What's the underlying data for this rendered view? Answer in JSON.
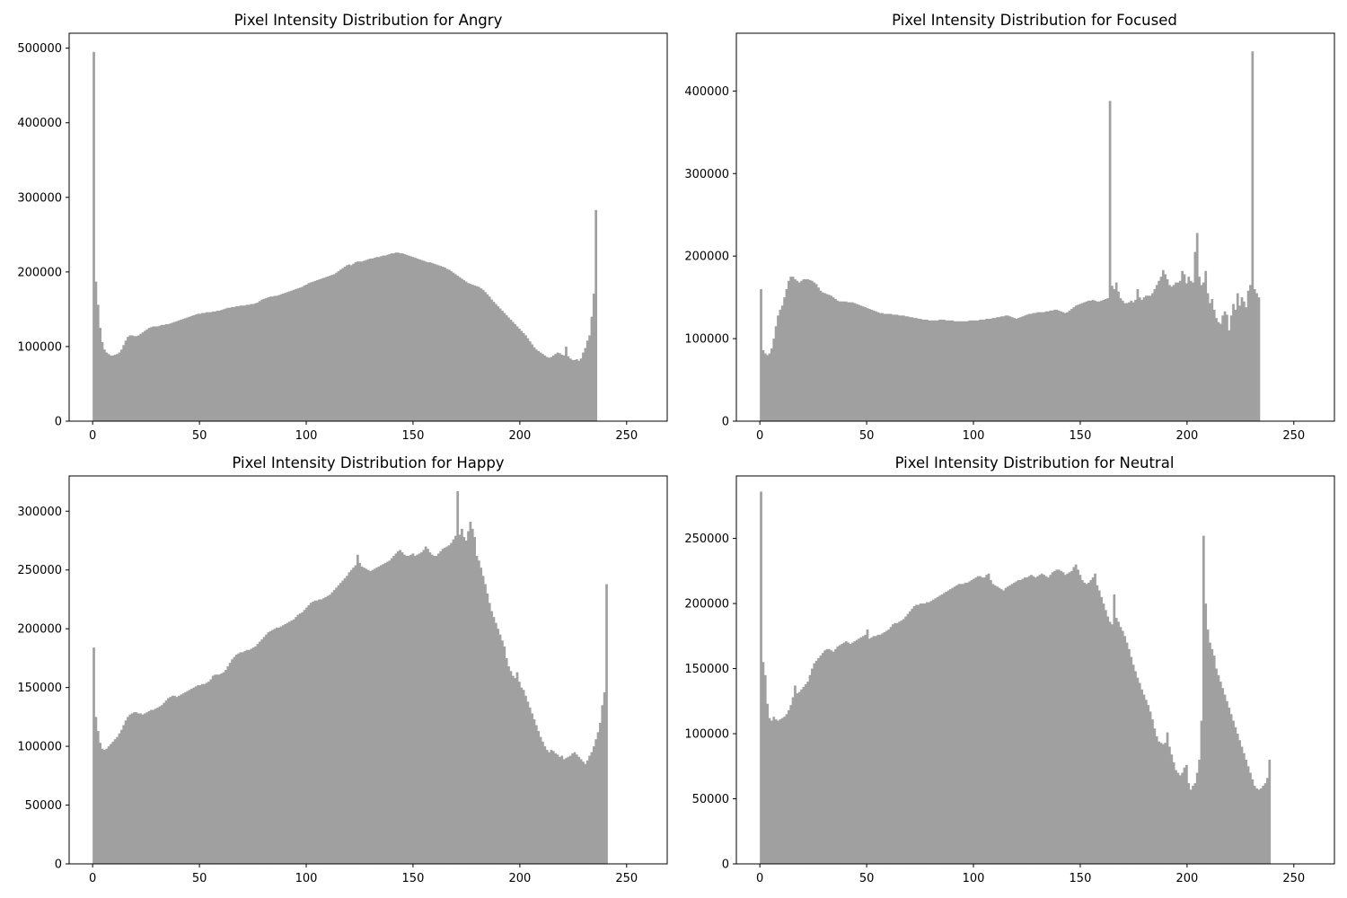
{
  "figure": {
    "background": "#ffffff",
    "bar_color": "#a0a0a0",
    "grid": false
  },
  "chart_data": [
    {
      "type": "bar",
      "title": "Pixel Intensity Distribution for Angry",
      "xlabel": "",
      "ylabel": "",
      "xlim": [
        -11,
        269
      ],
      "ylim": [
        0,
        520000
      ],
      "xticks": [
        0,
        50,
        100,
        150,
        200,
        250
      ],
      "xtick_labels": [
        "0",
        "50",
        "100",
        "150",
        "200",
        "250"
      ],
      "yticks": [
        0,
        100000,
        200000,
        300000,
        400000,
        500000
      ],
      "ytick_labels": [
        "0",
        "100000",
        "200000",
        "300000",
        "400000",
        "500000"
      ],
      "bins": {
        "start": 0,
        "end": 255,
        "count": 256
      },
      "values": [
        495000,
        187000,
        156000,
        125000,
        106000,
        96000,
        92000,
        90000,
        88000,
        88000,
        89000,
        90000,
        92000,
        96000,
        102000,
        108000,
        113000,
        115000,
        115000,
        114000,
        114000,
        115000,
        117000,
        119000,
        121000,
        123000,
        125000,
        126000,
        127000,
        127000,
        127000,
        128000,
        129000,
        129000,
        130000,
        130000,
        131000,
        132000,
        133000,
        134000,
        135000,
        136000,
        137000,
        138000,
        139000,
        140000,
        141000,
        142000,
        143000,
        144000,
        144000,
        145000,
        145000,
        146000,
        146000,
        146000,
        147000,
        147000,
        148000,
        148000,
        149000,
        150000,
        151000,
        152000,
        152000,
        153000,
        153000,
        154000,
        154000,
        155000,
        155000,
        155000,
        156000,
        156000,
        157000,
        157000,
        158000,
        159000,
        161000,
        163000,
        164000,
        165000,
        166000,
        167000,
        167000,
        168000,
        168000,
        169000,
        170000,
        171000,
        172000,
        173000,
        174000,
        175000,
        176000,
        177000,
        178000,
        179000,
        180000,
        182000,
        183000,
        185000,
        186000,
        187000,
        188000,
        189000,
        190000,
        191000,
        192000,
        193000,
        194000,
        195000,
        196000,
        197000,
        199000,
        201000,
        203000,
        205000,
        207000,
        209000,
        210000,
        209000,
        211000,
        213000,
        214000,
        214000,
        214000,
        215000,
        216000,
        217000,
        218000,
        218000,
        219000,
        220000,
        220000,
        221000,
        222000,
        222000,
        223000,
        224000,
        225000,
        225000,
        226000,
        226000,
        225000,
        225000,
        224000,
        223000,
        222000,
        221000,
        220000,
        219000,
        218000,
        217000,
        216000,
        215000,
        214000,
        213000,
        213000,
        212000,
        211000,
        210000,
        209000,
        208000,
        207000,
        206000,
        204000,
        203000,
        201000,
        199000,
        197000,
        195000,
        193000,
        191000,
        189000,
        187000,
        185000,
        184000,
        183000,
        182000,
        181000,
        180000,
        178000,
        176000,
        173000,
        170000,
        167000,
        163000,
        160000,
        157000,
        154000,
        151000,
        148000,
        145000,
        142000,
        139000,
        136000,
        133000,
        130000,
        127000,
        124000,
        121000,
        118000,
        115000,
        111000,
        107000,
        103000,
        99000,
        96000,
        94000,
        92000,
        90000,
        88000,
        86000,
        85000,
        86000,
        88000,
        90000,
        92000,
        91000,
        89000,
        88000,
        100000,
        87000,
        84000,
        82000,
        82000,
        83000,
        81000,
        84000,
        92000,
        98000,
        108000,
        115000,
        140000,
        171000,
        283000
      ],
      "notes_values": "values list includes 256 bins; peaks at 0 and 255"
    },
    {
      "type": "bar",
      "title": "Pixel Intensity Distribution for Focused",
      "xlabel": "",
      "ylabel": "",
      "xlim": [
        -11,
        269
      ],
      "ylim": [
        0,
        470000
      ],
      "xticks": [
        0,
        50,
        100,
        150,
        200,
        250
      ],
      "xtick_labels": [
        "0",
        "50",
        "100",
        "150",
        "200",
        "250"
      ],
      "yticks": [
        0,
        100000,
        200000,
        300000,
        400000
      ],
      "ytick_labels": [
        "0",
        "100000",
        "200000",
        "300000",
        "400000"
      ],
      "bins": {
        "start": 0,
        "end": 255,
        "count": 256
      },
      "values": [
        160000,
        86000,
        82000,
        80000,
        82000,
        88000,
        100000,
        115000,
        128000,
        135000,
        140000,
        150000,
        160000,
        170000,
        175000,
        175000,
        172000,
        170000,
        168000,
        170000,
        172000,
        172000,
        172000,
        171000,
        170000,
        168000,
        166000,
        162000,
        158000,
        156000,
        155000,
        154000,
        153000,
        152000,
        150000,
        148000,
        146000,
        145000,
        145000,
        145000,
        145000,
        144000,
        144000,
        144000,
        143000,
        142000,
        141000,
        140000,
        139000,
        138000,
        137000,
        136000,
        135000,
        134000,
        133000,
        132000,
        131000,
        131000,
        130000,
        130000,
        130000,
        130000,
        129000,
        129000,
        129000,
        128000,
        128000,
        128000,
        127000,
        127000,
        126000,
        126000,
        125000,
        125000,
        124000,
        124000,
        123000,
        123000,
        123000,
        122000,
        122000,
        122000,
        122000,
        122000,
        123000,
        123000,
        123000,
        122000,
        122000,
        122000,
        122000,
        121000,
        121000,
        121000,
        121000,
        121000,
        121000,
        121000,
        122000,
        122000,
        122000,
        122000,
        122000,
        123000,
        123000,
        123000,
        124000,
        124000,
        124000,
        125000,
        125000,
        126000,
        126000,
        127000,
        127000,
        128000,
        128000,
        127000,
        126000,
        125000,
        124000,
        125000,
        126000,
        127000,
        128000,
        129000,
        130000,
        130000,
        131000,
        131000,
        132000,
        132000,
        132000,
        132000,
        133000,
        133000,
        134000,
        134000,
        135000,
        135000,
        134000,
        133000,
        132000,
        131000,
        132000,
        134000,
        136000,
        138000,
        140000,
        141000,
        142000,
        143000,
        144000,
        145000,
        146000,
        146000,
        147000,
        146000,
        145000,
        145000,
        146000,
        147000,
        148000,
        149000,
        388000,
        164000,
        160000,
        168000,
        157000,
        149000,
        146000,
        143000,
        143000,
        144000,
        146000,
        144000,
        147000,
        160000,
        150000,
        147000,
        150000,
        152000,
        152000,
        152000,
        155000,
        160000,
        165000,
        170000,
        175000,
        183000,
        178000,
        172000,
        165000,
        163000,
        165000,
        168000,
        168000,
        170000,
        182000,
        178000,
        167000,
        175000,
        170000,
        168000,
        205000,
        228000,
        175000,
        165000,
        168000,
        182000,
        155000,
        143000,
        148000,
        135000,
        125000,
        120000,
        118000,
        128000,
        133000,
        129000,
        110000,
        128000,
        142000,
        135000,
        155000,
        140000,
        150000,
        145000,
        138000,
        158000,
        165000,
        448000,
        160000,
        155000,
        150000
      ],
      "notes_values": "values list includes 256 bins; spikes near 184 and 255"
    },
    {
      "type": "bar",
      "title": "Pixel Intensity Distribution for Happy",
      "xlabel": "",
      "ylabel": "",
      "xlim": [
        -11,
        269
      ],
      "ylim": [
        0,
        330000
      ],
      "xticks": [
        0,
        50,
        100,
        150,
        200,
        250
      ],
      "xtick_labels": [
        "0",
        "50",
        "100",
        "150",
        "200",
        "250"
      ],
      "yticks": [
        0,
        50000,
        100000,
        150000,
        200000,
        250000,
        300000
      ],
      "ytick_labels": [
        "0",
        "50000",
        "100000",
        "150000",
        "200000",
        "250000",
        "300000"
      ],
      "bins": {
        "start": 0,
        "end": 255,
        "count": 256
      },
      "values": [
        184000,
        125000,
        113000,
        103000,
        98000,
        97000,
        98000,
        100000,
        102000,
        104000,
        106000,
        108000,
        111000,
        114000,
        118000,
        122000,
        125000,
        127000,
        128000,
        129000,
        129000,
        128000,
        128000,
        127000,
        128000,
        129000,
        130000,
        131000,
        131000,
        132000,
        133000,
        134000,
        135000,
        137000,
        139000,
        141000,
        142000,
        143000,
        143000,
        142000,
        143000,
        144000,
        145000,
        146000,
        147000,
        148000,
        149000,
        150000,
        151000,
        152000,
        152000,
        153000,
        153000,
        154000,
        155000,
        157000,
        160000,
        161000,
        161000,
        161000,
        162000,
        163000,
        165000,
        168000,
        171000,
        174000,
        176000,
        178000,
        179000,
        180000,
        180000,
        181000,
        182000,
        182000,
        183000,
        184000,
        185000,
        187000,
        189000,
        191000,
        193000,
        195000,
        197000,
        198000,
        199000,
        200000,
        201000,
        201000,
        202000,
        203000,
        204000,
        205000,
        206000,
        207000,
        208000,
        210000,
        212000,
        213000,
        214000,
        216000,
        218000,
        220000,
        222000,
        223000,
        224000,
        224000,
        225000,
        225000,
        226000,
        227000,
        228000,
        229000,
        231000,
        233000,
        235000,
        237000,
        239000,
        241000,
        243000,
        245000,
        248000,
        250000,
        252000,
        254000,
        263000,
        256000,
        253000,
        252000,
        251000,
        250000,
        249000,
        250000,
        251000,
        252000,
        253000,
        254000,
        255000,
        256000,
        257000,
        258000,
        260000,
        262000,
        264000,
        266000,
        267000,
        265000,
        263000,
        262000,
        262000,
        263000,
        264000,
        262000,
        263000,
        264000,
        265000,
        267000,
        270000,
        268000,
        265000,
        263000,
        262000,
        262000,
        264000,
        266000,
        268000,
        269000,
        270000,
        271000,
        273000,
        276000,
        279000,
        317000,
        280000,
        285000,
        278000,
        275000,
        283000,
        291000,
        285000,
        278000,
        262000,
        258000,
        252000,
        245000,
        238000,
        230000,
        222000,
        215000,
        210000,
        205000,
        200000,
        195000,
        190000,
        185000,
        175000,
        168000,
        164000,
        160000,
        158000,
        163000,
        155000,
        150000,
        148000,
        143000,
        138000,
        133000,
        128000,
        123000,
        118000,
        113000,
        108000,
        104000,
        100000,
        97000,
        95000,
        97000,
        96000,
        94000,
        93000,
        91000,
        92000,
        89000,
        90000,
        91000,
        92000,
        94000,
        95000,
        93000,
        91000,
        89000,
        87000,
        85000,
        88000,
        92000,
        95000,
        100000,
        106000,
        112000,
        120000,
        135000,
        146000,
        238000
      ],
      "notes_values": "values list includes 256 bins; peak near 182"
    },
    {
      "type": "bar",
      "title": "Pixel Intensity Distribution for Neutral",
      "xlabel": "",
      "ylabel": "",
      "xlim": [
        -11,
        269
      ],
      "ylim": [
        0,
        298000
      ],
      "xticks": [
        0,
        50,
        100,
        150,
        200,
        250
      ],
      "xtick_labels": [
        "0",
        "50",
        "100",
        "150",
        "200",
        "250"
      ],
      "yticks": [
        0,
        50000,
        100000,
        150000,
        200000,
        250000
      ],
      "ytick_labels": [
        "0",
        "50000",
        "100000",
        "150000",
        "200000",
        "250000"
      ],
      "bins": {
        "start": 0,
        "end": 255,
        "count": 256
      },
      "values": [
        286000,
        155000,
        145000,
        123000,
        112000,
        110000,
        113000,
        111000,
        110000,
        111000,
        112000,
        113000,
        115000,
        118000,
        122000,
        128000,
        137000,
        131000,
        132000,
        134000,
        136000,
        138000,
        140000,
        145000,
        150000,
        154000,
        156000,
        158000,
        160000,
        162000,
        164000,
        165000,
        165000,
        164000,
        163000,
        165000,
        167000,
        168000,
        169000,
        170000,
        171000,
        170000,
        169000,
        170000,
        171000,
        172000,
        173000,
        174000,
        175000,
        176000,
        180000,
        173000,
        174000,
        175000,
        175000,
        176000,
        176000,
        177000,
        178000,
        179000,
        180000,
        182000,
        184000,
        185000,
        185000,
        186000,
        187000,
        188000,
        190000,
        192000,
        194000,
        196000,
        198000,
        199000,
        199000,
        200000,
        200000,
        200000,
        201000,
        201000,
        202000,
        203000,
        204000,
        205000,
        206000,
        207000,
        208000,
        209000,
        210000,
        211000,
        212000,
        213000,
        214000,
        215000,
        215000,
        215000,
        216000,
        216000,
        217000,
        218000,
        219000,
        220000,
        221000,
        221000,
        220000,
        220000,
        222000,
        223000,
        218000,
        215000,
        214000,
        213000,
        212000,
        211000,
        210000,
        212000,
        213000,
        214000,
        215000,
        216000,
        217000,
        218000,
        218000,
        219000,
        220000,
        220000,
        221000,
        222000,
        221000,
        220000,
        221000,
        222000,
        223000,
        222000,
        221000,
        220000,
        222000,
        224000,
        225000,
        226000,
        226000,
        225000,
        224000,
        222000,
        223000,
        224000,
        225000,
        228000,
        230000,
        226000,
        222000,
        218000,
        216000,
        215000,
        216000,
        218000,
        220000,
        223000,
        214000,
        210000,
        205000,
        200000,
        195000,
        190000,
        186000,
        184000,
        207000,
        189000,
        186000,
        182000,
        179000,
        175000,
        170000,
        165000,
        159000,
        153000,
        148000,
        143000,
        139000,
        134000,
        130000,
        126000,
        122000,
        117000,
        111000,
        104000,
        98000,
        94000,
        93000,
        92000,
        93000,
        101000,
        90000,
        84000,
        78000,
        72000,
        70000,
        68000,
        70000,
        74000,
        76000,
        62000,
        57000,
        60000,
        62000,
        70000,
        80000,
        110000,
        252000,
        200000,
        180000,
        170000,
        165000,
        160000,
        150000,
        145000,
        140000,
        135000,
        130000,
        125000,
        120000,
        115000,
        110000,
        105000,
        100000,
        95000,
        90000,
        85000,
        80000,
        75000,
        70000,
        65000,
        60000,
        58000,
        57000,
        58000,
        60000,
        62000,
        66000,
        80000
      ],
      "notes_values": "values list includes 256 bins"
    }
  ]
}
